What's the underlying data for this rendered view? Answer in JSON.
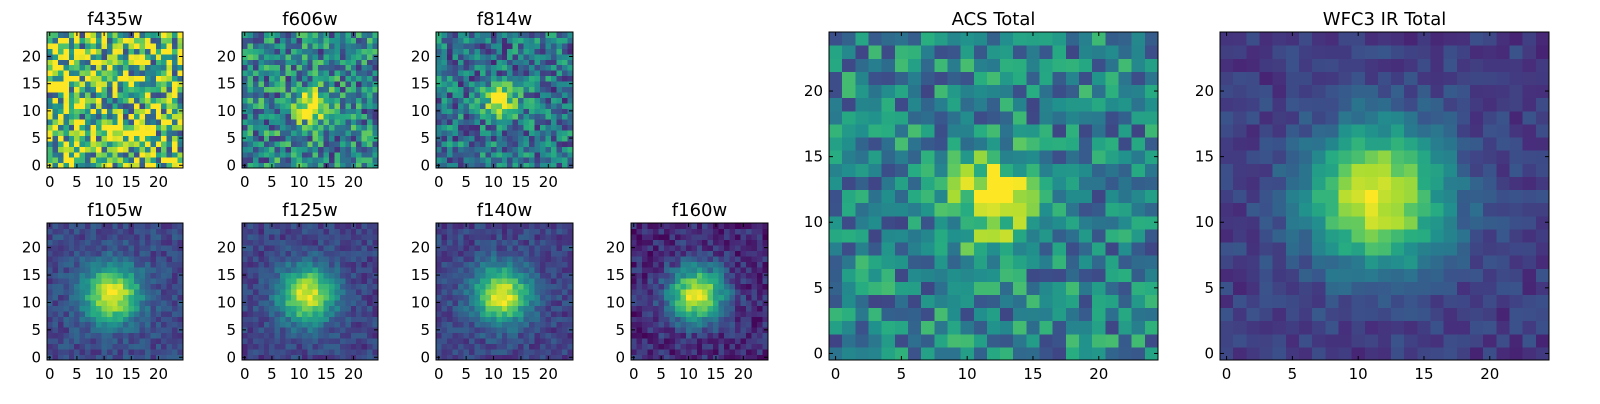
{
  "colors": {
    "colormap": [
      "#440154",
      "#472c7a",
      "#3b518b",
      "#2c718e",
      "#21908d",
      "#27ad81",
      "#5cc863",
      "#aadc32",
      "#fde725"
    ],
    "frame": "#000000",
    "background": "#ffffff"
  },
  "chart_data": [
    {
      "type": "heatmap",
      "title": "f435w",
      "cmap": "viridis",
      "grid": false,
      "shape": [
        25,
        25
      ],
      "xlim": [
        0,
        24
      ],
      "ylim": [
        0,
        24
      ],
      "xticks": [
        0,
        5,
        10,
        15,
        20
      ],
      "yticks": [
        0,
        5,
        10,
        15,
        20
      ],
      "source_center": null,
      "source_sigma": null,
      "peak": 0.0,
      "noise_level": 0.5,
      "background_level": 0.72
    },
    {
      "type": "heatmap",
      "title": "f606w",
      "cmap": "viridis",
      "grid": false,
      "shape": [
        25,
        25
      ],
      "xlim": [
        0,
        24
      ],
      "ylim": [
        0,
        24
      ],
      "xticks": [
        0,
        5,
        10,
        15,
        20
      ],
      "yticks": [
        0,
        5,
        10,
        15,
        20
      ],
      "source_center": [
        12,
        11
      ],
      "source_sigma": 2.2,
      "peak": 0.55,
      "noise_level": 0.32,
      "background_level": 0.45
    },
    {
      "type": "heatmap",
      "title": "f814w",
      "cmap": "viridis",
      "grid": false,
      "shape": [
        25,
        25
      ],
      "xlim": [
        0,
        24
      ],
      "ylim": [
        0,
        24
      ],
      "xticks": [
        0,
        5,
        10,
        15,
        20
      ],
      "yticks": [
        0,
        5,
        10,
        15,
        20
      ],
      "source_center": [
        11.5,
        11.5
      ],
      "source_sigma": 2.2,
      "peak": 0.6,
      "noise_level": 0.28,
      "background_level": 0.38
    },
    {
      "type": "heatmap",
      "title": "f105w",
      "cmap": "viridis",
      "grid": false,
      "shape": [
        25,
        25
      ],
      "xlim": [
        0,
        24
      ],
      "ylim": [
        0,
        24
      ],
      "xticks": [
        0,
        5,
        10,
        15,
        20
      ],
      "yticks": [
        0,
        5,
        10,
        15,
        20
      ],
      "source_center": [
        11.5,
        11.5
      ],
      "source_sigma": 3.6,
      "peak": 0.78,
      "noise_level": 0.1,
      "background_level": 0.22
    },
    {
      "type": "heatmap",
      "title": "f125w",
      "cmap": "viridis",
      "grid": false,
      "shape": [
        25,
        25
      ],
      "xlim": [
        0,
        24
      ],
      "ylim": [
        0,
        24
      ],
      "xticks": [
        0,
        5,
        10,
        15,
        20
      ],
      "yticks": [
        0,
        5,
        10,
        15,
        20
      ],
      "source_center": [
        11.5,
        11.5
      ],
      "source_sigma": 3.6,
      "peak": 0.78,
      "noise_level": 0.1,
      "background_level": 0.2
    },
    {
      "type": "heatmap",
      "title": "f140w",
      "cmap": "viridis",
      "grid": false,
      "shape": [
        25,
        25
      ],
      "xlim": [
        0,
        24
      ],
      "ylim": [
        0,
        24
      ],
      "xticks": [
        0,
        5,
        10,
        15,
        20
      ],
      "yticks": [
        0,
        5,
        10,
        15,
        20
      ],
      "source_center": [
        11.5,
        11.5
      ],
      "source_sigma": 3.6,
      "peak": 0.78,
      "noise_level": 0.1,
      "background_level": 0.2
    },
    {
      "type": "heatmap",
      "title": "f160w",
      "cmap": "viridis",
      "grid": false,
      "shape": [
        25,
        25
      ],
      "xlim": [
        0,
        24
      ],
      "ylim": [
        0,
        24
      ],
      "xticks": [
        0,
        5,
        10,
        15,
        20
      ],
      "yticks": [
        0,
        5,
        10,
        15,
        20
      ],
      "source_center": [
        11.5,
        11.5
      ],
      "source_sigma": 3.6,
      "peak": 0.85,
      "noise_level": 0.12,
      "background_level": 0.12
    },
    {
      "type": "heatmap",
      "title": "ACS Total",
      "cmap": "viridis",
      "grid": false,
      "shape": [
        25,
        25
      ],
      "xlim": [
        0,
        24
      ],
      "ylim": [
        0,
        24
      ],
      "xticks": [
        0,
        5,
        10,
        15,
        20
      ],
      "yticks": [
        0,
        5,
        10,
        15,
        20
      ],
      "source_center": [
        12,
        12
      ],
      "source_sigma": 2.4,
      "peak": 0.55,
      "noise_level": 0.25,
      "background_level": 0.45
    },
    {
      "type": "heatmap",
      "title": "WFC3 IR Total",
      "cmap": "viridis",
      "grid": false,
      "shape": [
        25,
        25
      ],
      "xlim": [
        0,
        24
      ],
      "ylim": [
        0,
        24
      ],
      "xticks": [
        0,
        5,
        10,
        15,
        20
      ],
      "yticks": [
        0,
        5,
        10,
        15,
        20
      ],
      "source_center": [
        11.5,
        12
      ],
      "source_sigma": 3.8,
      "peak": 0.8,
      "noise_level": 0.08,
      "background_level": 0.18
    }
  ]
}
